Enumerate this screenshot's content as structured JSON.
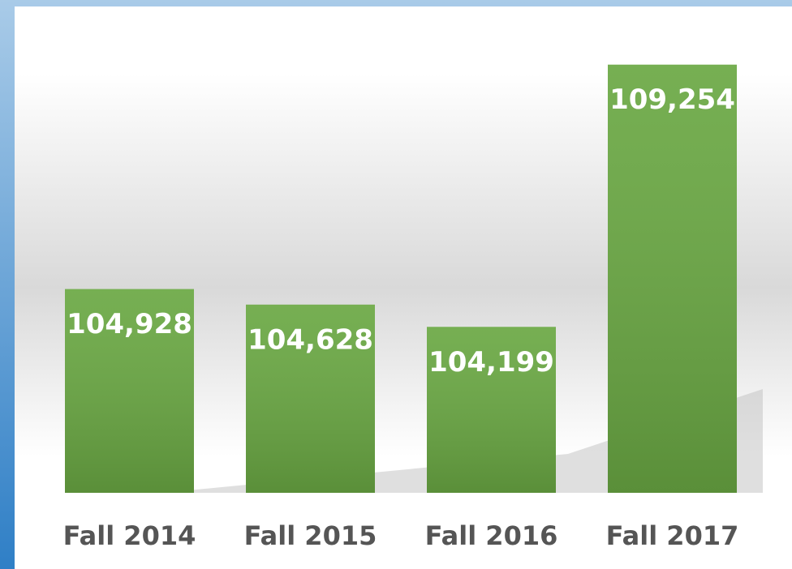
{
  "chart_data": {
    "type": "bar",
    "categories": [
      "Fall 2014",
      "Fall 2015",
      "Fall 2016",
      "Fall 2017"
    ],
    "values": [
      104928,
      104628,
      104199,
      109254
    ],
    "value_labels": [
      "104,928",
      "104,628",
      "104,199",
      "109,254"
    ],
    "color": "#6aa843",
    "ylim": [
      101000,
      110000
    ]
  }
}
